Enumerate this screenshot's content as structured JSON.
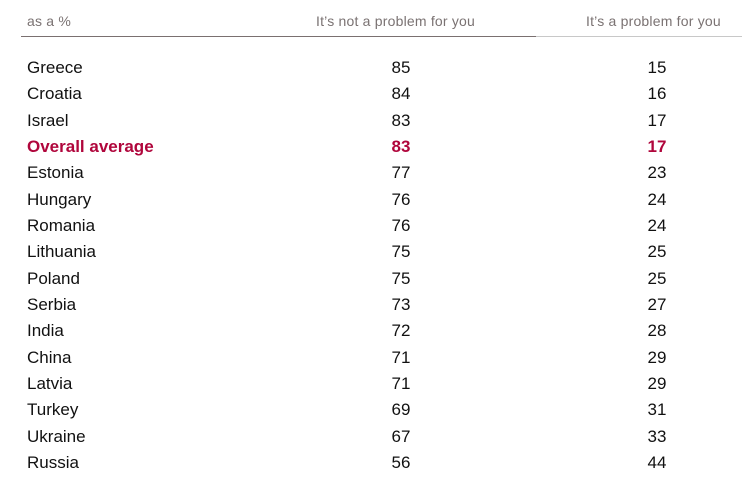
{
  "chart_data": {
    "type": "table",
    "columns": [
      "as a %",
      "It’s not a problem for you",
      "It’s a problem for you"
    ],
    "highlight_color": "#b0063c",
    "rows": [
      {
        "label": "Greece",
        "not_problem": "85",
        "problem": "15"
      },
      {
        "label": "Croatia",
        "not_problem": "84",
        "problem": "16"
      },
      {
        "label": "Israel",
        "not_problem": "83",
        "problem": "17"
      },
      {
        "label": "Overall average",
        "not_problem": "83",
        "problem": "17",
        "highlight": true
      },
      {
        "label": "Estonia",
        "not_problem": "77",
        "problem": "23"
      },
      {
        "label": "Hungary",
        "not_problem": "76",
        "problem": "24"
      },
      {
        "label": "Romania",
        "not_problem": "76",
        "problem": "24"
      },
      {
        "label": "Lithuania",
        "not_problem": "75",
        "problem": "25"
      },
      {
        "label": "Poland",
        "not_problem": "75",
        "problem": "25"
      },
      {
        "label": "Serbia",
        "not_problem": "73",
        "problem": "27"
      },
      {
        "label": "India",
        "not_problem": "72",
        "problem": "28"
      },
      {
        "label": "China",
        "not_problem": "71",
        "problem": "29"
      },
      {
        "label": "Latvia",
        "not_problem": "71",
        "problem": "29"
      },
      {
        "label": "Turkey",
        "not_problem": "69",
        "problem": "31"
      },
      {
        "label": "Ukraine",
        "not_problem": "67",
        "problem": "33"
      },
      {
        "label": "Russia",
        "not_problem": "56",
        "problem": "44"
      }
    ]
  }
}
